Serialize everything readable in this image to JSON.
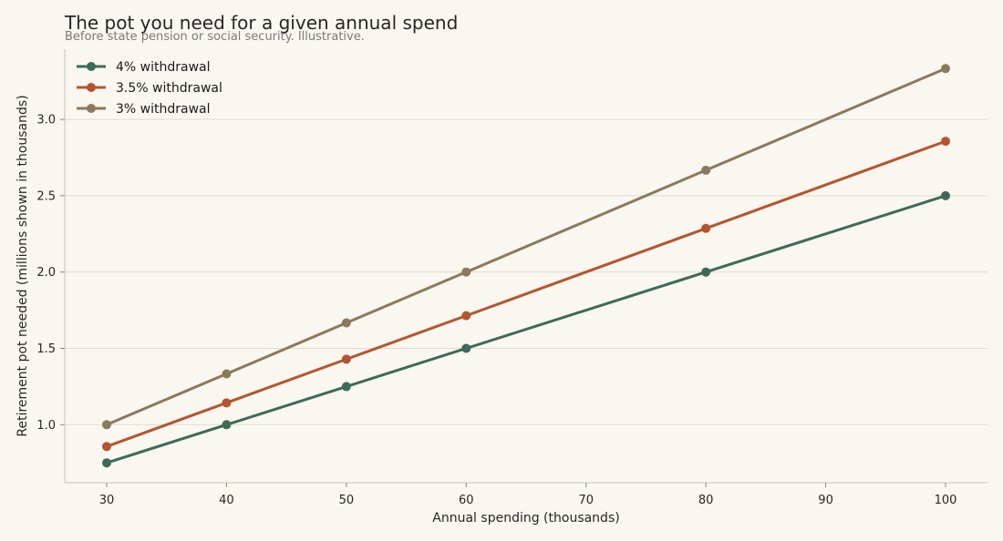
{
  "chart_data": {
    "type": "line",
    "title": "The pot you need for a given annual spend",
    "subtitle": "Before state pension or social security. Illustrative.",
    "xlabel": "Annual spending (thousands)",
    "ylabel": "Retirement pot needed (millions shown in thousands)",
    "xlim": [
      26.5,
      103.5
    ],
    "ylim": [
      0.62,
      3.46
    ],
    "xticks": [
      30,
      40,
      50,
      60,
      70,
      80,
      90,
      100
    ],
    "yticks": [
      1.0,
      1.5,
      2.0,
      2.5,
      3.0
    ],
    "x": [
      30,
      40,
      50,
      60,
      80,
      100
    ],
    "grid": "horizontal",
    "legend_position": "top-left",
    "series": [
      {
        "name": "4% withdrawal",
        "color": "#3d6b5a",
        "values": [
          0.75,
          1.0,
          1.25,
          1.5,
          2.0,
          2.5
        ]
      },
      {
        "name": "3.5% withdrawal",
        "color": "#b5552f",
        "values": [
          0.857,
          1.143,
          1.429,
          1.714,
          2.286,
          2.857
        ]
      },
      {
        "name": "3% withdrawal",
        "color": "#8a7a5c",
        "values": [
          1.0,
          1.333,
          1.667,
          2.0,
          2.667,
          3.333
        ]
      }
    ]
  }
}
